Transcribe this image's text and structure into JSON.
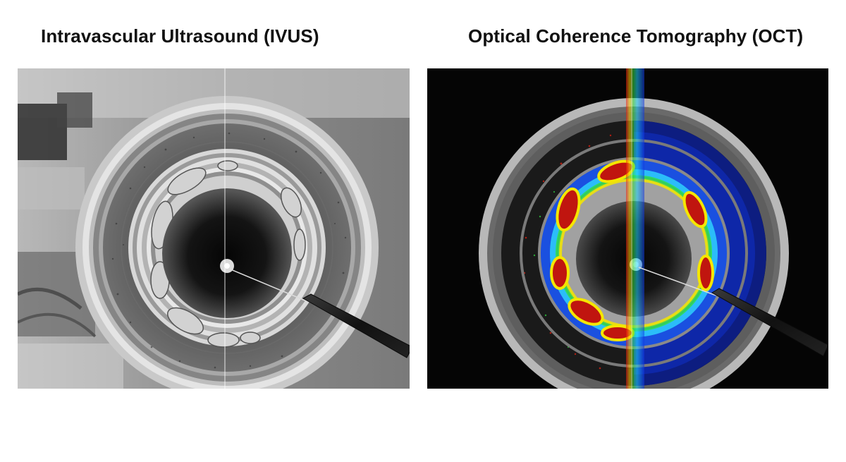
{
  "titles": {
    "left": "Intravascular Ultrasound (IVUS)",
    "right": "Optical Coherence Tomography (OCT)"
  },
  "colors": {
    "ivus_bg": "#9a9a9a",
    "oct_bg": "#050505",
    "heat_red": "#c0150f",
    "heat_yellow": "#f5e600",
    "heat_green": "#22c43a",
    "heat_blue": "#1640d8"
  }
}
